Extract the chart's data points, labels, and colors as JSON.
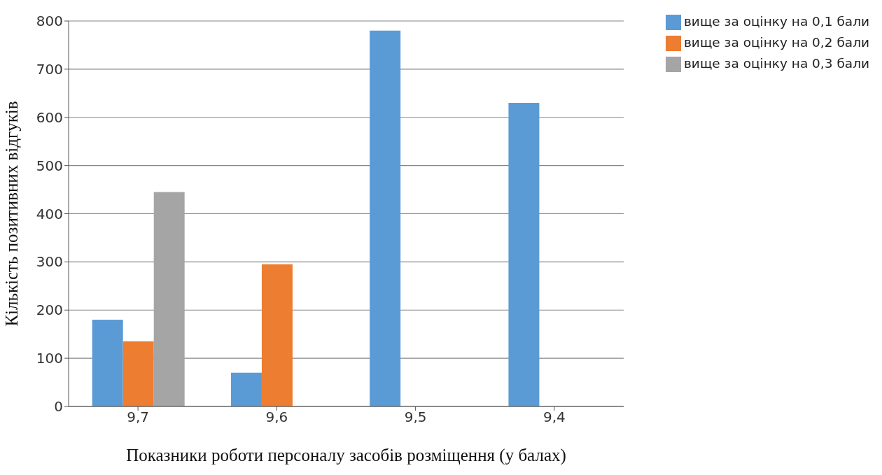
{
  "chart_data": {
    "type": "bar",
    "xlabel": "Показники роботи персоналу засобів розміщення (у балах)",
    "ylabel": "Кількість позитивних відгуків",
    "categories": [
      "9,7",
      "9,6",
      "9,5",
      "9,4"
    ],
    "series": [
      {
        "name": "вище за оцінку на 0,1 бали",
        "color": "#5b9bd5",
        "values": [
          180,
          70,
          780,
          630
        ]
      },
      {
        "name": "вище за оцінку на 0,2 бали",
        "color": "#ed7d31",
        "values": [
          135,
          295,
          null,
          null
        ]
      },
      {
        "name": "вище за оцінку на 0,3 бали",
        "color": "#a5a5a5",
        "values": [
          445,
          null,
          null,
          null
        ]
      }
    ],
    "ylim": [
      0,
      800
    ],
    "yticks": [
      0,
      100,
      200,
      300,
      400,
      500,
      600,
      700,
      800
    ],
    "grid": "y",
    "legend": "top right"
  }
}
